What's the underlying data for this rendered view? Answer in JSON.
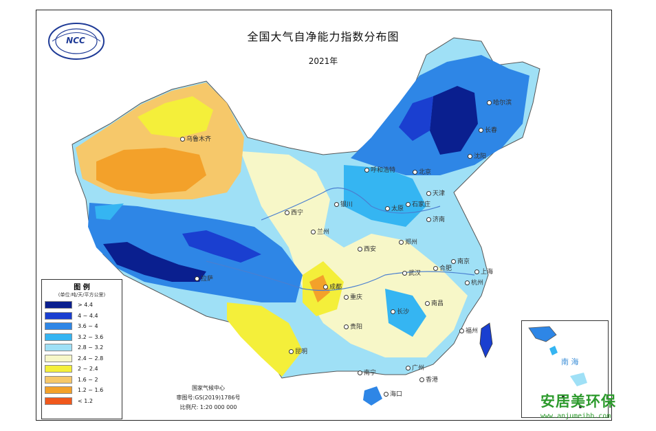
{
  "map": {
    "title": "全国大气自净能力指数分布图",
    "subtitle": "2021年",
    "logo_text": "NCC"
  },
  "legend": {
    "title": "图 例",
    "unit": "(单位:吨/天/平方公里)",
    "classes": [
      {
        "label": "> 4.4",
        "color": "#0a1f8f"
      },
      {
        "label": "4 ~ 4.4",
        "color": "#1a3fd0"
      },
      {
        "label": "3.6 ~ 4",
        "color": "#2e86e6"
      },
      {
        "label": "3.2 ~ 3.6",
        "color": "#35b5f2"
      },
      {
        "label": "2.8 ~ 3.2",
        "color": "#9fe0f6"
      },
      {
        "label": "2.4 ~ 2.8",
        "color": "#f7f7c8"
      },
      {
        "label": "2 ~ 2.4",
        "color": "#f4ef3a"
      },
      {
        "label": "1.6 ~ 2",
        "color": "#f6c86a"
      },
      {
        "label": "1.2 ~ 1.6",
        "color": "#f3a12a"
      },
      {
        "label": "< 1.2",
        "color": "#f0581c"
      }
    ]
  },
  "credits": {
    "org": "国家气候中心",
    "map_number": "审图号:GS(2019)1786号",
    "scale": "比例尺: 1:20 000 000"
  },
  "cities": [
    {
      "name": "乌鲁木齐"
    },
    {
      "name": "拉萨"
    },
    {
      "name": "西宁"
    },
    {
      "name": "兰州"
    },
    {
      "name": "银川"
    },
    {
      "name": "呼和浩特"
    },
    {
      "name": "北京"
    },
    {
      "name": "太原"
    },
    {
      "name": "石家庄"
    },
    {
      "name": "济南"
    },
    {
      "name": "郑州"
    },
    {
      "name": "西安"
    },
    {
      "name": "成都"
    },
    {
      "name": "重庆"
    },
    {
      "name": "武汉"
    },
    {
      "name": "合肥"
    },
    {
      "name": "南京"
    },
    {
      "name": "上海"
    },
    {
      "name": "杭州"
    },
    {
      "name": "长沙"
    },
    {
      "name": "南昌"
    },
    {
      "name": "福州"
    },
    {
      "name": "贵阳"
    },
    {
      "name": "昆明"
    },
    {
      "name": "南宁"
    },
    {
      "name": "广州"
    },
    {
      "name": "香港"
    },
    {
      "name": "海口"
    },
    {
      "name": "哈尔滨"
    },
    {
      "name": "长春"
    },
    {
      "name": "沈阳"
    },
    {
      "name": "天津"
    }
  ],
  "inset": {
    "label": "南 海"
  },
  "watermark": {
    "text": "安居美环保",
    "url": "www.anjumeihb.com"
  }
}
